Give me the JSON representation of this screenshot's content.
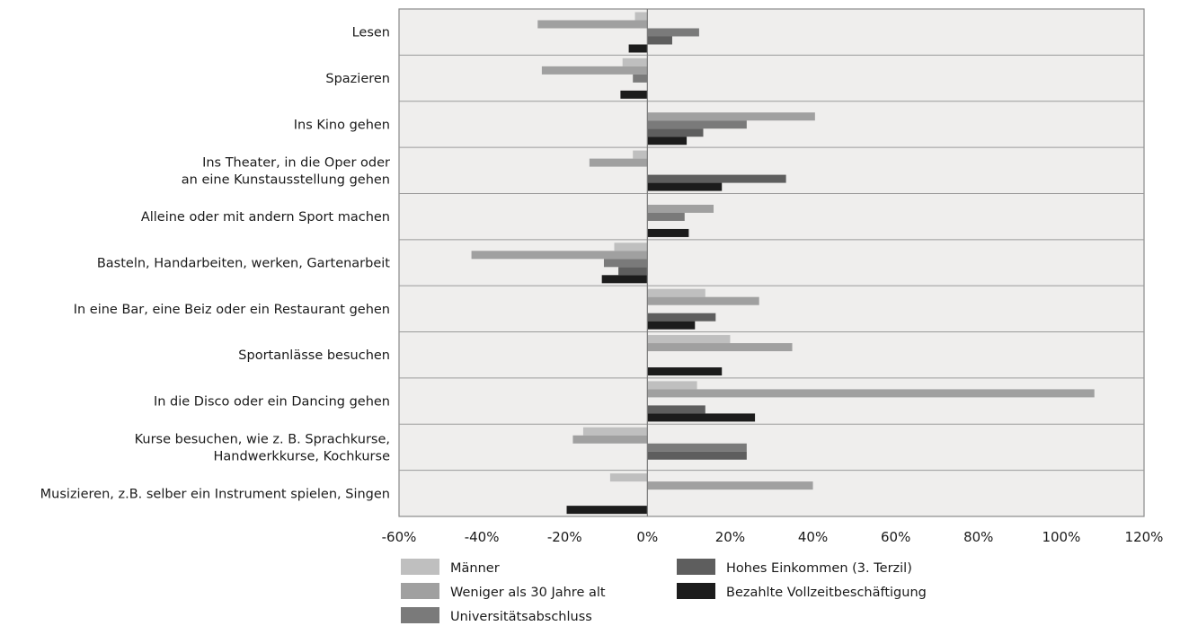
{
  "chart_data": {
    "type": "bar",
    "orientation": "horizontal",
    "categories": [
      [
        "Lesen"
      ],
      [
        "Spazieren"
      ],
      [
        "Ins Kino gehen"
      ],
      [
        "Ins Theater, in die Oper oder",
        "an eine Kunstausstellung gehen"
      ],
      [
        "Alleine oder mit andern Sport machen"
      ],
      [
        "Basteln, Handarbeiten, werken, Gartenarbeit"
      ],
      [
        "In eine Bar, eine Beiz oder ein Restaurant gehen"
      ],
      [
        "Sportanlässe besuchen"
      ],
      [
        "In die Disco oder ein Dancing gehen"
      ],
      [
        "Kurse besuchen, wie z. B. Sprachkurse,",
        "Handwerkkurse, Kochkurse"
      ],
      [
        "Musizieren, z.B. selber ein Instrument spielen, Singen"
      ]
    ],
    "series": [
      {
        "name": "Männer",
        "color": "#bfbfbf",
        "values": [
          -3,
          -6,
          0,
          -3.5,
          0,
          -8,
          14,
          20,
          12,
          -15.5,
          -9
        ]
      },
      {
        "name": "Weniger als 30 Jahre alt",
        "color": "#a0a0a0",
        "values": [
          -26.5,
          -25.5,
          40.5,
          -14,
          16,
          -42.5,
          27,
          35,
          108,
          -18,
          40
        ]
      },
      {
        "name": "Universitätsabschluss",
        "color": "#7a7a7a",
        "values": [
          12.5,
          -3.5,
          24,
          0,
          9,
          -10.5,
          0,
          0,
          0,
          24,
          0
        ]
      },
      {
        "name": "Hohes Einkommen (3. Terzil)",
        "color": "#5e5e5e",
        "values": [
          6,
          0,
          13.5,
          33.5,
          0,
          -7,
          16.5,
          0,
          14,
          24,
          0
        ]
      },
      {
        "name": "Bezahlte Vollzeitbeschäftigung",
        "color": "#1c1c1c",
        "values": [
          -4.5,
          -6.5,
          9.5,
          18,
          10,
          -11,
          11.5,
          18,
          26,
          0,
          -19.5
        ]
      }
    ],
    "xlim": [
      -60,
      120
    ],
    "xticks": [
      -60,
      -40,
      -20,
      0,
      20,
      40,
      60,
      80,
      100,
      120
    ],
    "tick_labels": [
      "-60%",
      "-40%",
      "-20%",
      "0%",
      "20%",
      "40%",
      "60%",
      "80%",
      "100%",
      "120%"
    ],
    "grid": "horizontal separators between categories",
    "legend_position": "bottom",
    "plot_background": "#efeeed"
  }
}
